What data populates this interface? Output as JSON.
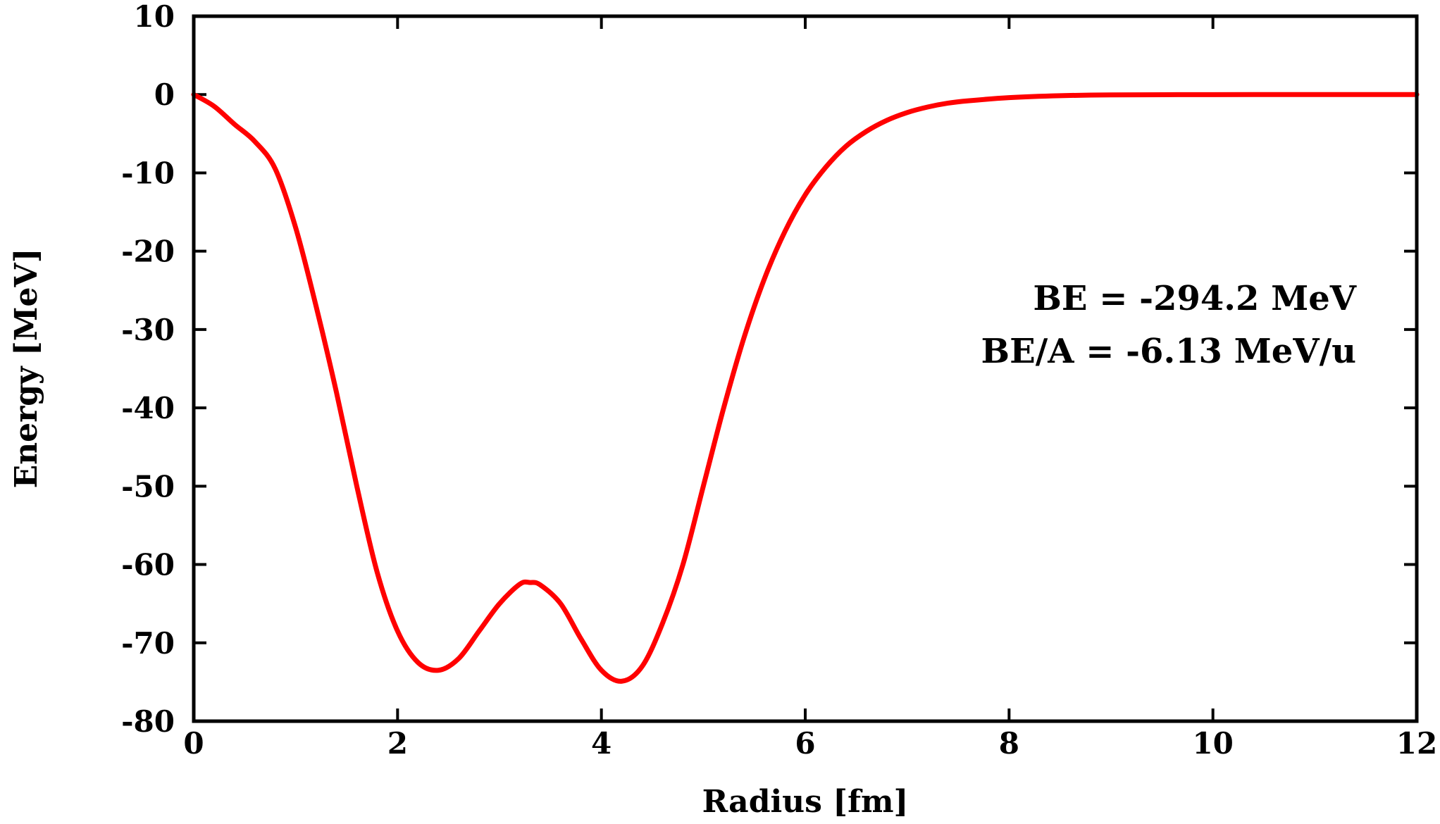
{
  "chart_data": {
    "type": "line",
    "title": "",
    "xlabel": "Radius [fm]",
    "ylabel": "Energy [MeV]",
    "xlim": [
      0,
      12
    ],
    "ylim": [
      -80,
      10
    ],
    "xticks": [
      0,
      2,
      4,
      6,
      8,
      10,
      12
    ],
    "yticks": [
      10,
      0,
      -10,
      -20,
      -30,
      -40,
      -50,
      -60,
      -70,
      -80
    ],
    "grid": false,
    "legend": "none",
    "annotations": [
      "BE = -294.2 MeV",
      "BE/A = -6.13 MeV/u"
    ],
    "series": [
      {
        "color": "#ff0000",
        "x": [
          0,
          0.2,
          0.4,
          0.6,
          0.8,
          1.0,
          1.2,
          1.4,
          1.6,
          1.8,
          2.0,
          2.2,
          2.4,
          2.6,
          2.8,
          3.0,
          3.2,
          3.3,
          3.4,
          3.6,
          3.8,
          4.0,
          4.2,
          4.4,
          4.6,
          4.8,
          5.0,
          5.2,
          5.4,
          5.6,
          5.8,
          6.0,
          6.2,
          6.4,
          6.6,
          6.8,
          7.0,
          7.2,
          7.4,
          7.6,
          8.0,
          8.5,
          9.0,
          10.0,
          11.0,
          12.0
        ],
        "y": [
          0,
          -1.5,
          -3.8,
          -6.0,
          -9.5,
          -17,
          -27,
          -38,
          -50,
          -61,
          -68.5,
          -72.5,
          -73.5,
          -72.0,
          -68.5,
          -65.0,
          -62.5,
          -62.3,
          -62.6,
          -65.0,
          -69.5,
          -73.5,
          -74.9,
          -73.0,
          -67.5,
          -60.0,
          -50.0,
          -40.0,
          -31.0,
          -23.5,
          -17.5,
          -12.8,
          -9.3,
          -6.6,
          -4.7,
          -3.3,
          -2.3,
          -1.6,
          -1.1,
          -0.8,
          -0.4,
          -0.15,
          -0.05,
          -0.01,
          0,
          0
        ]
      }
    ]
  }
}
